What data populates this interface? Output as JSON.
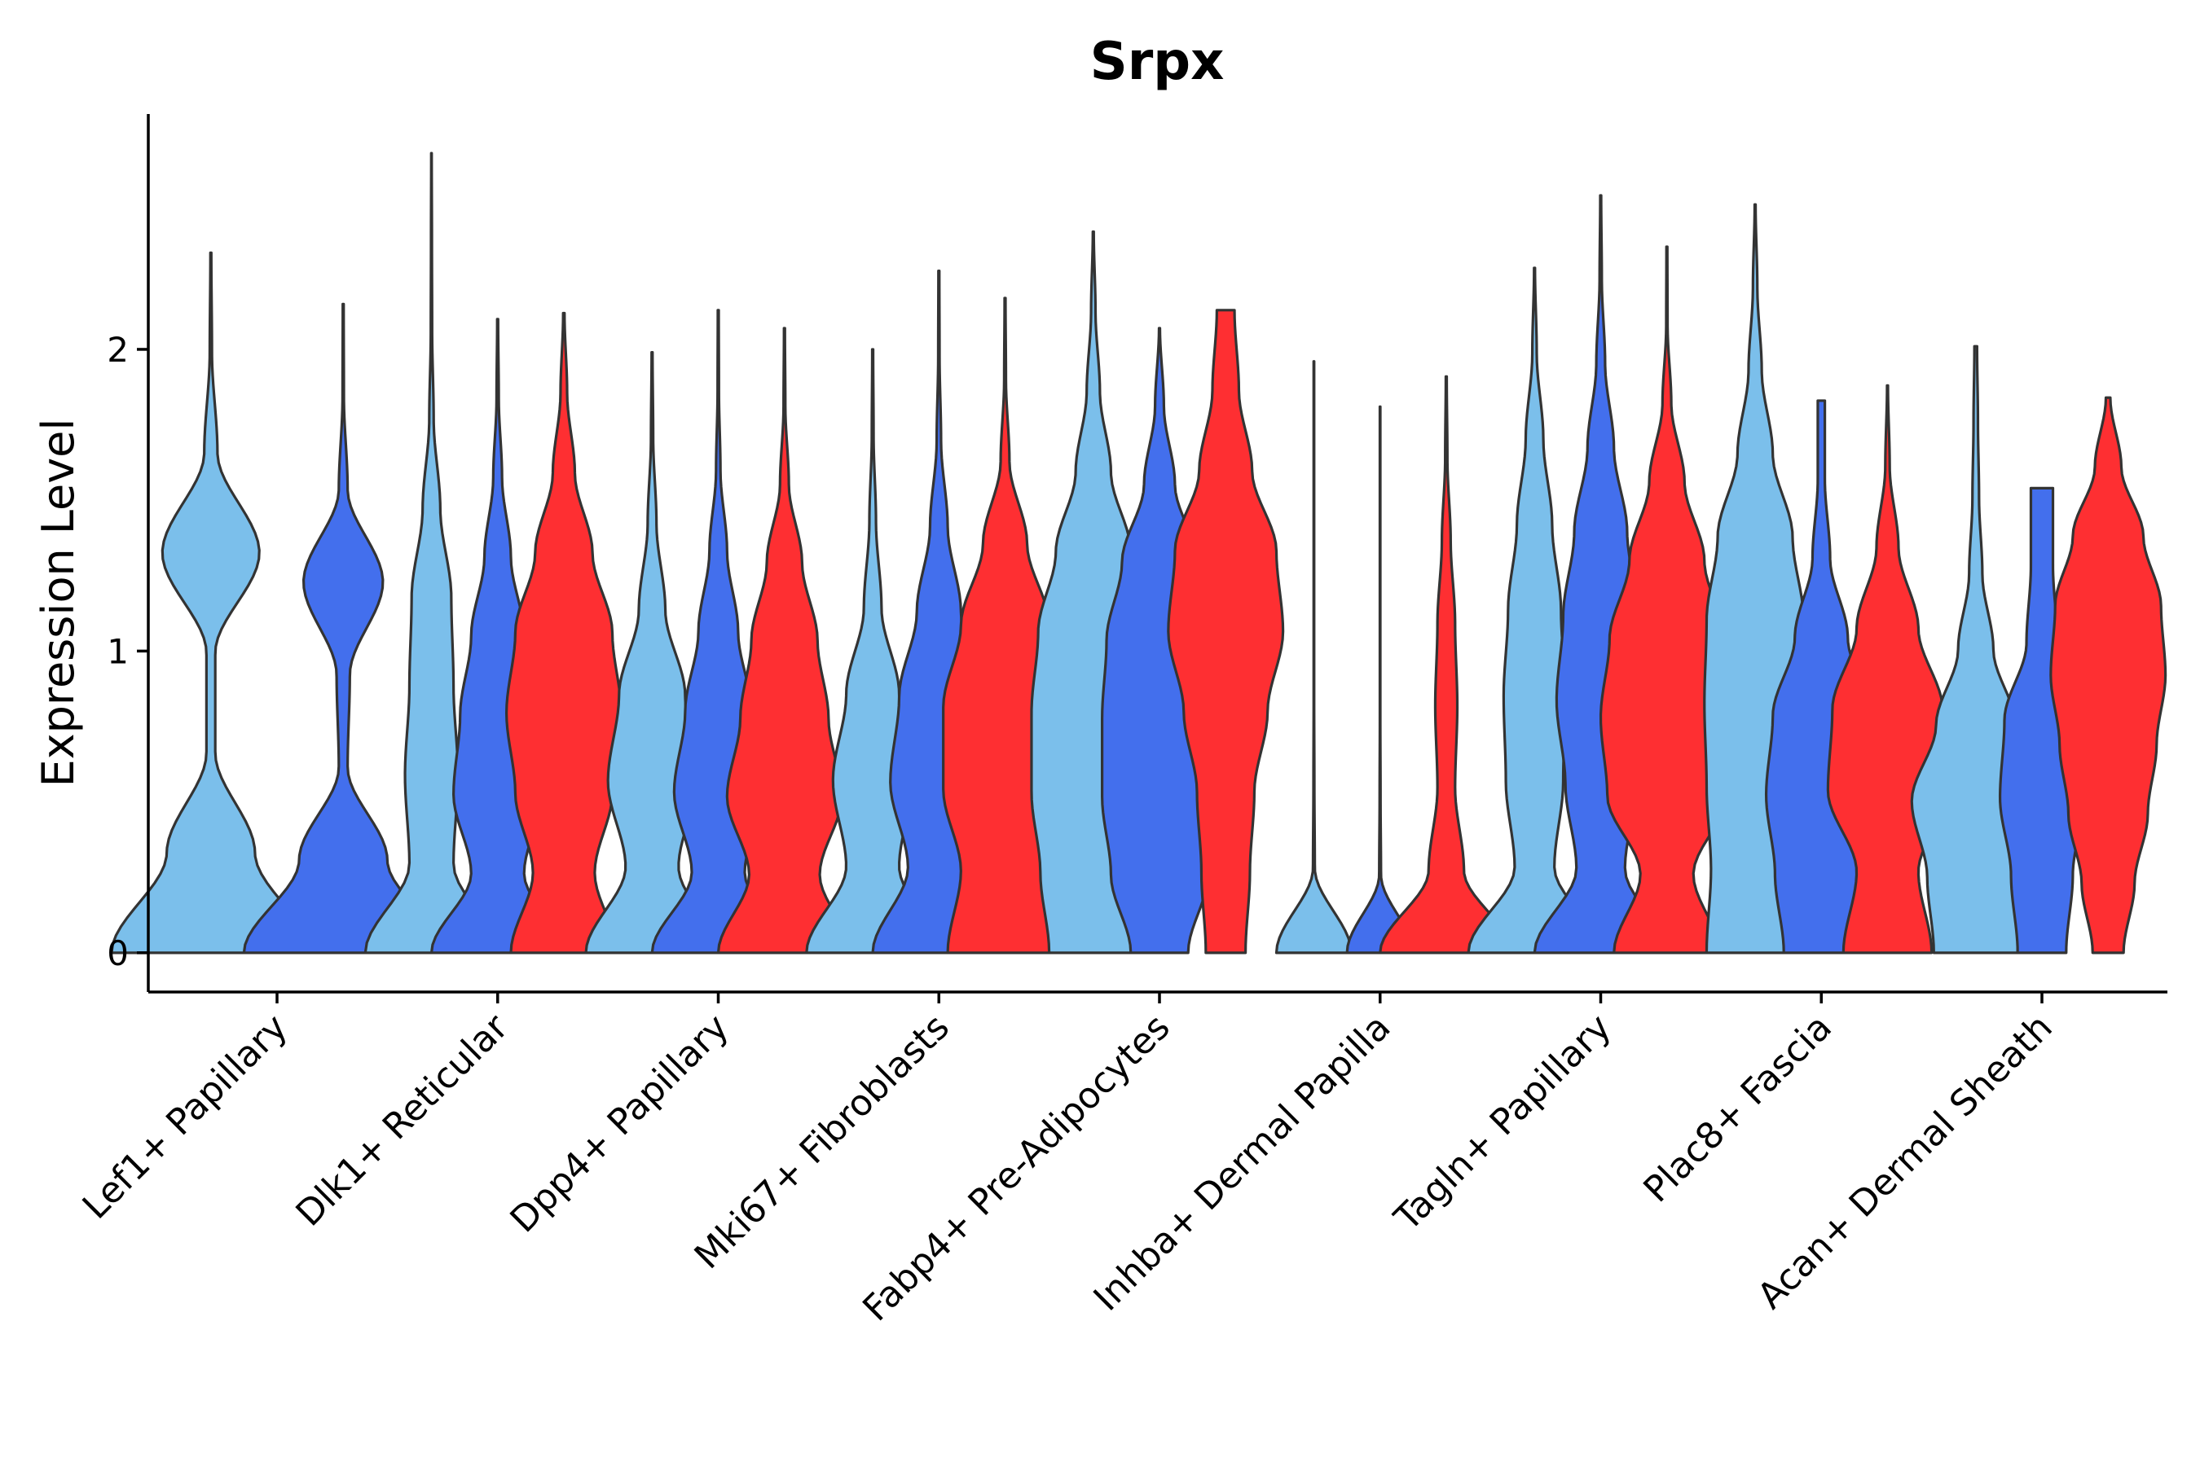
{
  "chart_data": {
    "type": "violin",
    "title": "Srpx",
    "xlabel": "",
    "ylabel": "Expression Level",
    "ylim": [
      -0.13,
      2.78
    ],
    "yticks": [
      0,
      1,
      2
    ],
    "grid": false,
    "legend": "none",
    "colors": [
      "#7bbfeb",
      "#436fed",
      "#fe2f32"
    ],
    "categories": [
      "Lef1+ Papillary",
      "Dlk1+ Reticular",
      "Dpp4+ Papillary",
      "Mki67+ Fibroblasts",
      "Fabp4+ Pre-Adipocytes",
      "Inhba+ Dermal Papilla",
      "Tagln+ Papillary",
      "Plac8+ Fascia",
      "Acan+ Dermal Sheath"
    ],
    "violins": [
      {
        "category": 0,
        "offset": -0.3,
        "series": 0,
        "max": 2.32,
        "widths": [
          0.45,
          0.2,
          0.02,
          0.02,
          0.22,
          0.03,
          0.005,
          0.002
        ]
      },
      {
        "category": 0,
        "offset": 0.3,
        "series": 1,
        "max": 2.15,
        "widths": [
          0.45,
          0.2,
          0.02,
          0.03,
          0.18,
          0.02,
          0.003,
          0.002
        ]
      },
      {
        "category": 1,
        "offset": -0.3,
        "series": 0,
        "max": 2.65,
        "widths": [
          0.3,
          0.1,
          0.12,
          0.1,
          0.09,
          0.04,
          0.01,
          0.003,
          0.002,
          0.001
        ]
      },
      {
        "category": 1,
        "offset": 0.0,
        "series": 1,
        "max": 2.1,
        "widths": [
          0.3,
          0.12,
          0.2,
          0.17,
          0.12,
          0.06,
          0.02,
          0.005,
          0.002
        ]
      },
      {
        "category": 1,
        "offset": 0.3,
        "series": 2,
        "max": 2.12,
        "widths": [
          0.24,
          0.14,
          0.22,
          0.26,
          0.22,
          0.13,
          0.05,
          0.015,
          0.003
        ]
      },
      {
        "category": 2,
        "offset": -0.3,
        "series": 0,
        "max": 1.99,
        "widths": [
          0.3,
          0.12,
          0.2,
          0.15,
          0.06,
          0.02,
          0.005,
          0.002
        ]
      },
      {
        "category": 2,
        "offset": 0.0,
        "series": 1,
        "max": 2.13,
        "widths": [
          0.3,
          0.12,
          0.2,
          0.15,
          0.09,
          0.04,
          0.01,
          0.003,
          0.002
        ]
      },
      {
        "category": 2,
        "offset": 0.3,
        "series": 2,
        "max": 2.07,
        "widths": [
          0.3,
          0.16,
          0.26,
          0.2,
          0.15,
          0.08,
          0.02,
          0.004,
          0.002
        ]
      },
      {
        "category": 3,
        "offset": -0.3,
        "series": 0,
        "max": 2.0,
        "widths": [
          0.3,
          0.12,
          0.18,
          0.12,
          0.04,
          0.015,
          0.004,
          0.002
        ]
      },
      {
        "category": 3,
        "offset": 0.0,
        "series": 1,
        "max": 2.26,
        "widths": [
          0.3,
          0.14,
          0.22,
          0.18,
          0.1,
          0.04,
          0.01,
          0.003,
          0.002
        ]
      },
      {
        "category": 3,
        "offset": 0.3,
        "series": 2,
        "max": 2.17,
        "widths": [
          0.26,
          0.2,
          0.28,
          0.28,
          0.2,
          0.1,
          0.02,
          0.004,
          0.002
        ]
      },
      {
        "category": 4,
        "offset": -0.3,
        "series": 0,
        "max": 2.39,
        "widths": [
          0.2,
          0.24,
          0.28,
          0.28,
          0.25,
          0.17,
          0.08,
          0.03,
          0.01,
          0.002
        ]
      },
      {
        "category": 4,
        "offset": 0.0,
        "series": 1,
        "max": 2.07,
        "widths": [
          0.13,
          0.22,
          0.26,
          0.26,
          0.24,
          0.17,
          0.07,
          0.02,
          0.002
        ]
      },
      {
        "category": 4,
        "offset": 0.3,
        "series": 2,
        "max": 2.13,
        "widths": [
          0.09,
          0.11,
          0.13,
          0.19,
          0.26,
          0.23,
          0.12,
          0.06,
          0.04
        ]
      },
      {
        "category": 5,
        "offset": -0.3,
        "series": 0,
        "max": 1.96,
        "widths": [
          0.17,
          0.004,
          0.002,
          0.001,
          0.001,
          0.001,
          0.001,
          0.001
        ]
      },
      {
        "category": 5,
        "offset": 0.0,
        "series": 1,
        "max": 1.81,
        "widths": [
          0.15,
          0.004,
          0.002,
          0.001,
          0.001,
          0.001,
          0.001,
          0.001
        ]
      },
      {
        "category": 5,
        "offset": 0.3,
        "series": 2,
        "max": 1.91,
        "widths": [
          0.3,
          0.08,
          0.04,
          0.05,
          0.04,
          0.02,
          0.005,
          0.002
        ]
      },
      {
        "category": 6,
        "offset": -0.3,
        "series": 0,
        "max": 2.27,
        "widths": [
          0.3,
          0.09,
          0.13,
          0.14,
          0.12,
          0.08,
          0.04,
          0.01,
          0.002
        ]
      },
      {
        "category": 6,
        "offset": 0.0,
        "series": 1,
        "max": 2.51,
        "widths": [
          0.3,
          0.11,
          0.16,
          0.2,
          0.17,
          0.12,
          0.06,
          0.02,
          0.005,
          0.002
        ]
      },
      {
        "category": 6,
        "offset": 0.3,
        "series": 2,
        "max": 2.34,
        "widths": [
          0.24,
          0.12,
          0.27,
          0.3,
          0.26,
          0.17,
          0.08,
          0.02,
          0.003,
          0.002
        ]
      },
      {
        "category": 7,
        "offset": -0.3,
        "series": 0,
        "max": 2.48,
        "widths": [
          0.22,
          0.2,
          0.22,
          0.23,
          0.22,
          0.17,
          0.08,
          0.03,
          0.01,
          0.002
        ]
      },
      {
        "category": 7,
        "offset": 0.0,
        "series": 1,
        "max": 1.83,
        "widths": [
          0.17,
          0.21,
          0.25,
          0.22,
          0.12,
          0.04,
          0.016,
          0.016
        ]
      },
      {
        "category": 7,
        "offset": 0.3,
        "series": 2,
        "max": 1.88,
        "widths": [
          0.2,
          0.14,
          0.27,
          0.25,
          0.14,
          0.05,
          0.01,
          0.002
        ]
      },
      {
        "category": 8,
        "offset": -0.3,
        "series": 0,
        "max": 2.01,
        "widths": [
          0.19,
          0.22,
          0.29,
          0.18,
          0.08,
          0.03,
          0.015,
          0.01,
          0.006
        ]
      },
      {
        "category": 8,
        "offset": 0.0,
        "series": 1,
        "max": 1.54,
        "widths": [
          0.11,
          0.14,
          0.19,
          0.17,
          0.07,
          0.05,
          0.05
        ]
      },
      {
        "category": 8,
        "offset": 0.3,
        "series": 2,
        "max": 1.84,
        "widths": [
          0.07,
          0.12,
          0.18,
          0.22,
          0.26,
          0.24,
          0.16,
          0.06,
          0.01
        ]
      }
    ]
  }
}
